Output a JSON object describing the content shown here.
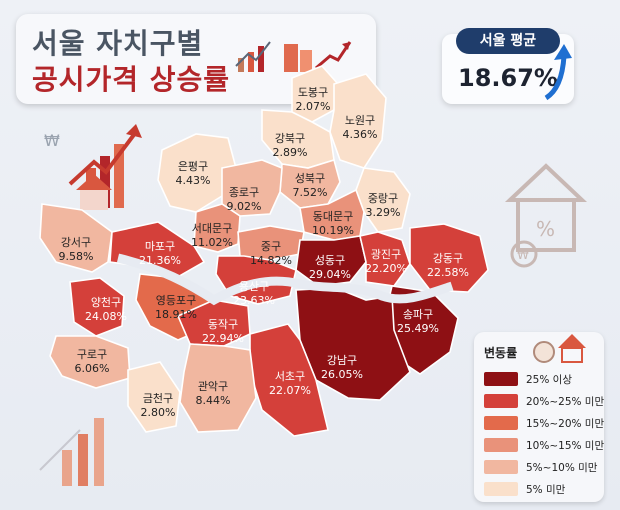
{
  "title": {
    "line1": "서울 자치구별",
    "line2": "공시가격 상승률"
  },
  "average": {
    "label": "서울 평균",
    "value": "18.67%"
  },
  "legend": {
    "title": "변동률",
    "items": [
      {
        "label": "25% 이상",
        "color": "#8e1014"
      },
      {
        "label": "20%~25% 미만",
        "color": "#d4403a"
      },
      {
        "label": "15%~20% 미만",
        "color": "#e36a4b"
      },
      {
        "label": "10%~15% 미만",
        "color": "#e9927a"
      },
      {
        "label": "5%~10% 미만",
        "color": "#f1b7a0"
      },
      {
        "label": "5% 미만",
        "color": "#fae0cb"
      }
    ]
  },
  "districts": [
    {
      "name": "도봉구",
      "rate": 2.07,
      "value": "2.07%"
    },
    {
      "name": "노원구",
      "rate": 4.36,
      "value": "4.36%"
    },
    {
      "name": "강북구",
      "rate": 2.89,
      "value": "2.89%"
    },
    {
      "name": "은평구",
      "rate": 4.43,
      "value": "4.43%"
    },
    {
      "name": "성북구",
      "rate": 7.52,
      "value": "7.52%"
    },
    {
      "name": "종로구",
      "rate": 9.02,
      "value": "9.02%"
    },
    {
      "name": "중랑구",
      "rate": 3.29,
      "value": "3.29%"
    },
    {
      "name": "동대문구",
      "rate": 10.19,
      "value": "10.19%"
    },
    {
      "name": "서대문구",
      "rate": 11.02,
      "value": "11.02%"
    },
    {
      "name": "강서구",
      "rate": 9.58,
      "value": "9.58%"
    },
    {
      "name": "마포구",
      "rate": 21.36,
      "value": "21.36%"
    },
    {
      "name": "중구",
      "rate": 14.82,
      "value": "14.82%"
    },
    {
      "name": "성동구",
      "rate": 29.04,
      "value": "29.04%"
    },
    {
      "name": "광진구",
      "rate": 22.2,
      "value": "22.20%"
    },
    {
      "name": "강동구",
      "rate": 22.58,
      "value": "22.58%"
    },
    {
      "name": "용산구",
      "rate": 23.63,
      "value": "23.63%"
    },
    {
      "name": "양천구",
      "rate": 24.08,
      "value": "24.08%"
    },
    {
      "name": "영등포구",
      "rate": 18.91,
      "value": "18.91%"
    },
    {
      "name": "송파구",
      "rate": 25.49,
      "value": "25.49%"
    },
    {
      "name": "구로구",
      "rate": 6.06,
      "value": "6.06%"
    },
    {
      "name": "동작구",
      "rate": 22.94,
      "value": "22.94%"
    },
    {
      "name": "강남구",
      "rate": 26.05,
      "value": "26.05%"
    },
    {
      "name": "서초구",
      "rate": 22.07,
      "value": "22.07%"
    },
    {
      "name": "금천구",
      "rate": 2.8,
      "value": "2.80%"
    },
    {
      "name": "관악구",
      "rate": 8.44,
      "value": "8.44%"
    }
  ]
}
